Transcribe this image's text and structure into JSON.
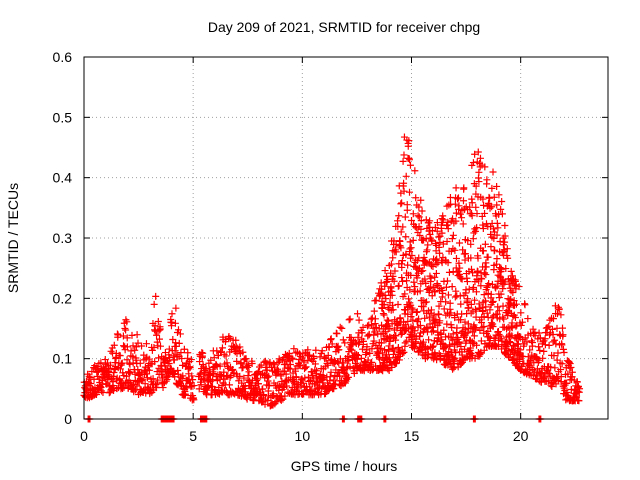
{
  "chart_data": {
    "type": "scatter",
    "title": "Day 209 of 2021, SRMTID for receiver chpg",
    "xlabel": "GPS time / hours",
    "ylabel": "SRMTID / TECUs",
    "xlim": [
      0,
      24
    ],
    "ylim": [
      0,
      0.6
    ],
    "xticks": [
      "0",
      "5",
      "10",
      "15",
      "20"
    ],
    "yticks": [
      "0",
      "0.1",
      "0.2",
      "0.3",
      "0.4",
      "0.5",
      "0.6"
    ],
    "grid": true,
    "marker": "+",
    "color": "#ff0000",
    "envelope": [
      [
        0.0,
        0.03,
        0.07
      ],
      [
        0.5,
        0.04,
        0.09
      ],
      [
        1.0,
        0.04,
        0.1
      ],
      [
        1.5,
        0.05,
        0.14
      ],
      [
        2.0,
        0.05,
        0.17
      ],
      [
        2.5,
        0.04,
        0.14
      ],
      [
        3.0,
        0.04,
        0.12
      ],
      [
        3.3,
        0.05,
        0.22
      ],
      [
        3.5,
        0.08,
        0.15
      ],
      [
        3.6,
        0.05,
        0.1
      ],
      [
        4.0,
        0.08,
        0.17
      ],
      [
        4.2,
        0.06,
        0.2
      ],
      [
        4.5,
        0.04,
        0.12
      ],
      [
        5.0,
        0.03,
        0.1
      ],
      [
        5.3,
        0.05,
        0.12
      ],
      [
        5.6,
        0.04,
        0.1
      ],
      [
        6.0,
        0.04,
        0.12
      ],
      [
        6.5,
        0.04,
        0.15
      ],
      [
        7.0,
        0.04,
        0.13
      ],
      [
        7.5,
        0.03,
        0.1
      ],
      [
        8.0,
        0.03,
        0.09
      ],
      [
        8.5,
        0.02,
        0.1
      ],
      [
        9.0,
        0.03,
        0.1
      ],
      [
        9.5,
        0.04,
        0.12
      ],
      [
        10.0,
        0.04,
        0.11
      ],
      [
        10.5,
        0.04,
        0.12
      ],
      [
        11.0,
        0.04,
        0.12
      ],
      [
        11.5,
        0.05,
        0.14
      ],
      [
        12.0,
        0.06,
        0.17
      ],
      [
        12.5,
        0.08,
        0.18
      ],
      [
        13.0,
        0.08,
        0.16
      ],
      [
        13.5,
        0.08,
        0.22
      ],
      [
        14.0,
        0.08,
        0.27
      ],
      [
        14.5,
        0.1,
        0.43
      ],
      [
        14.8,
        0.12,
        0.5
      ],
      [
        15.0,
        0.12,
        0.44
      ],
      [
        15.5,
        0.1,
        0.35
      ],
      [
        16.0,
        0.1,
        0.32
      ],
      [
        16.5,
        0.09,
        0.34
      ],
      [
        17.0,
        0.08,
        0.4
      ],
      [
        17.5,
        0.1,
        0.38
      ],
      [
        18.0,
        0.1,
        0.47
      ],
      [
        18.5,
        0.12,
        0.41
      ],
      [
        19.0,
        0.12,
        0.42
      ],
      [
        19.5,
        0.1,
        0.25
      ],
      [
        20.0,
        0.08,
        0.22
      ],
      [
        20.5,
        0.07,
        0.15
      ],
      [
        21.0,
        0.06,
        0.15
      ],
      [
        21.5,
        0.05,
        0.19
      ],
      [
        21.8,
        0.06,
        0.2
      ],
      [
        22.0,
        0.03,
        0.12
      ],
      [
        22.5,
        0.03,
        0.07
      ],
      [
        22.7,
        0.03,
        0.06
      ]
    ],
    "gaps": [
      [
        5.05,
        5.25
      ],
      [
        22.75,
        24
      ]
    ],
    "zero_markers": [
      0.25,
      3.6,
      3.7,
      3.8,
      3.9,
      4.0,
      4.1,
      5.4,
      5.5,
      5.6,
      11.9,
      12.6,
      12.7,
      13.8,
      17.9,
      20.9
    ]
  }
}
